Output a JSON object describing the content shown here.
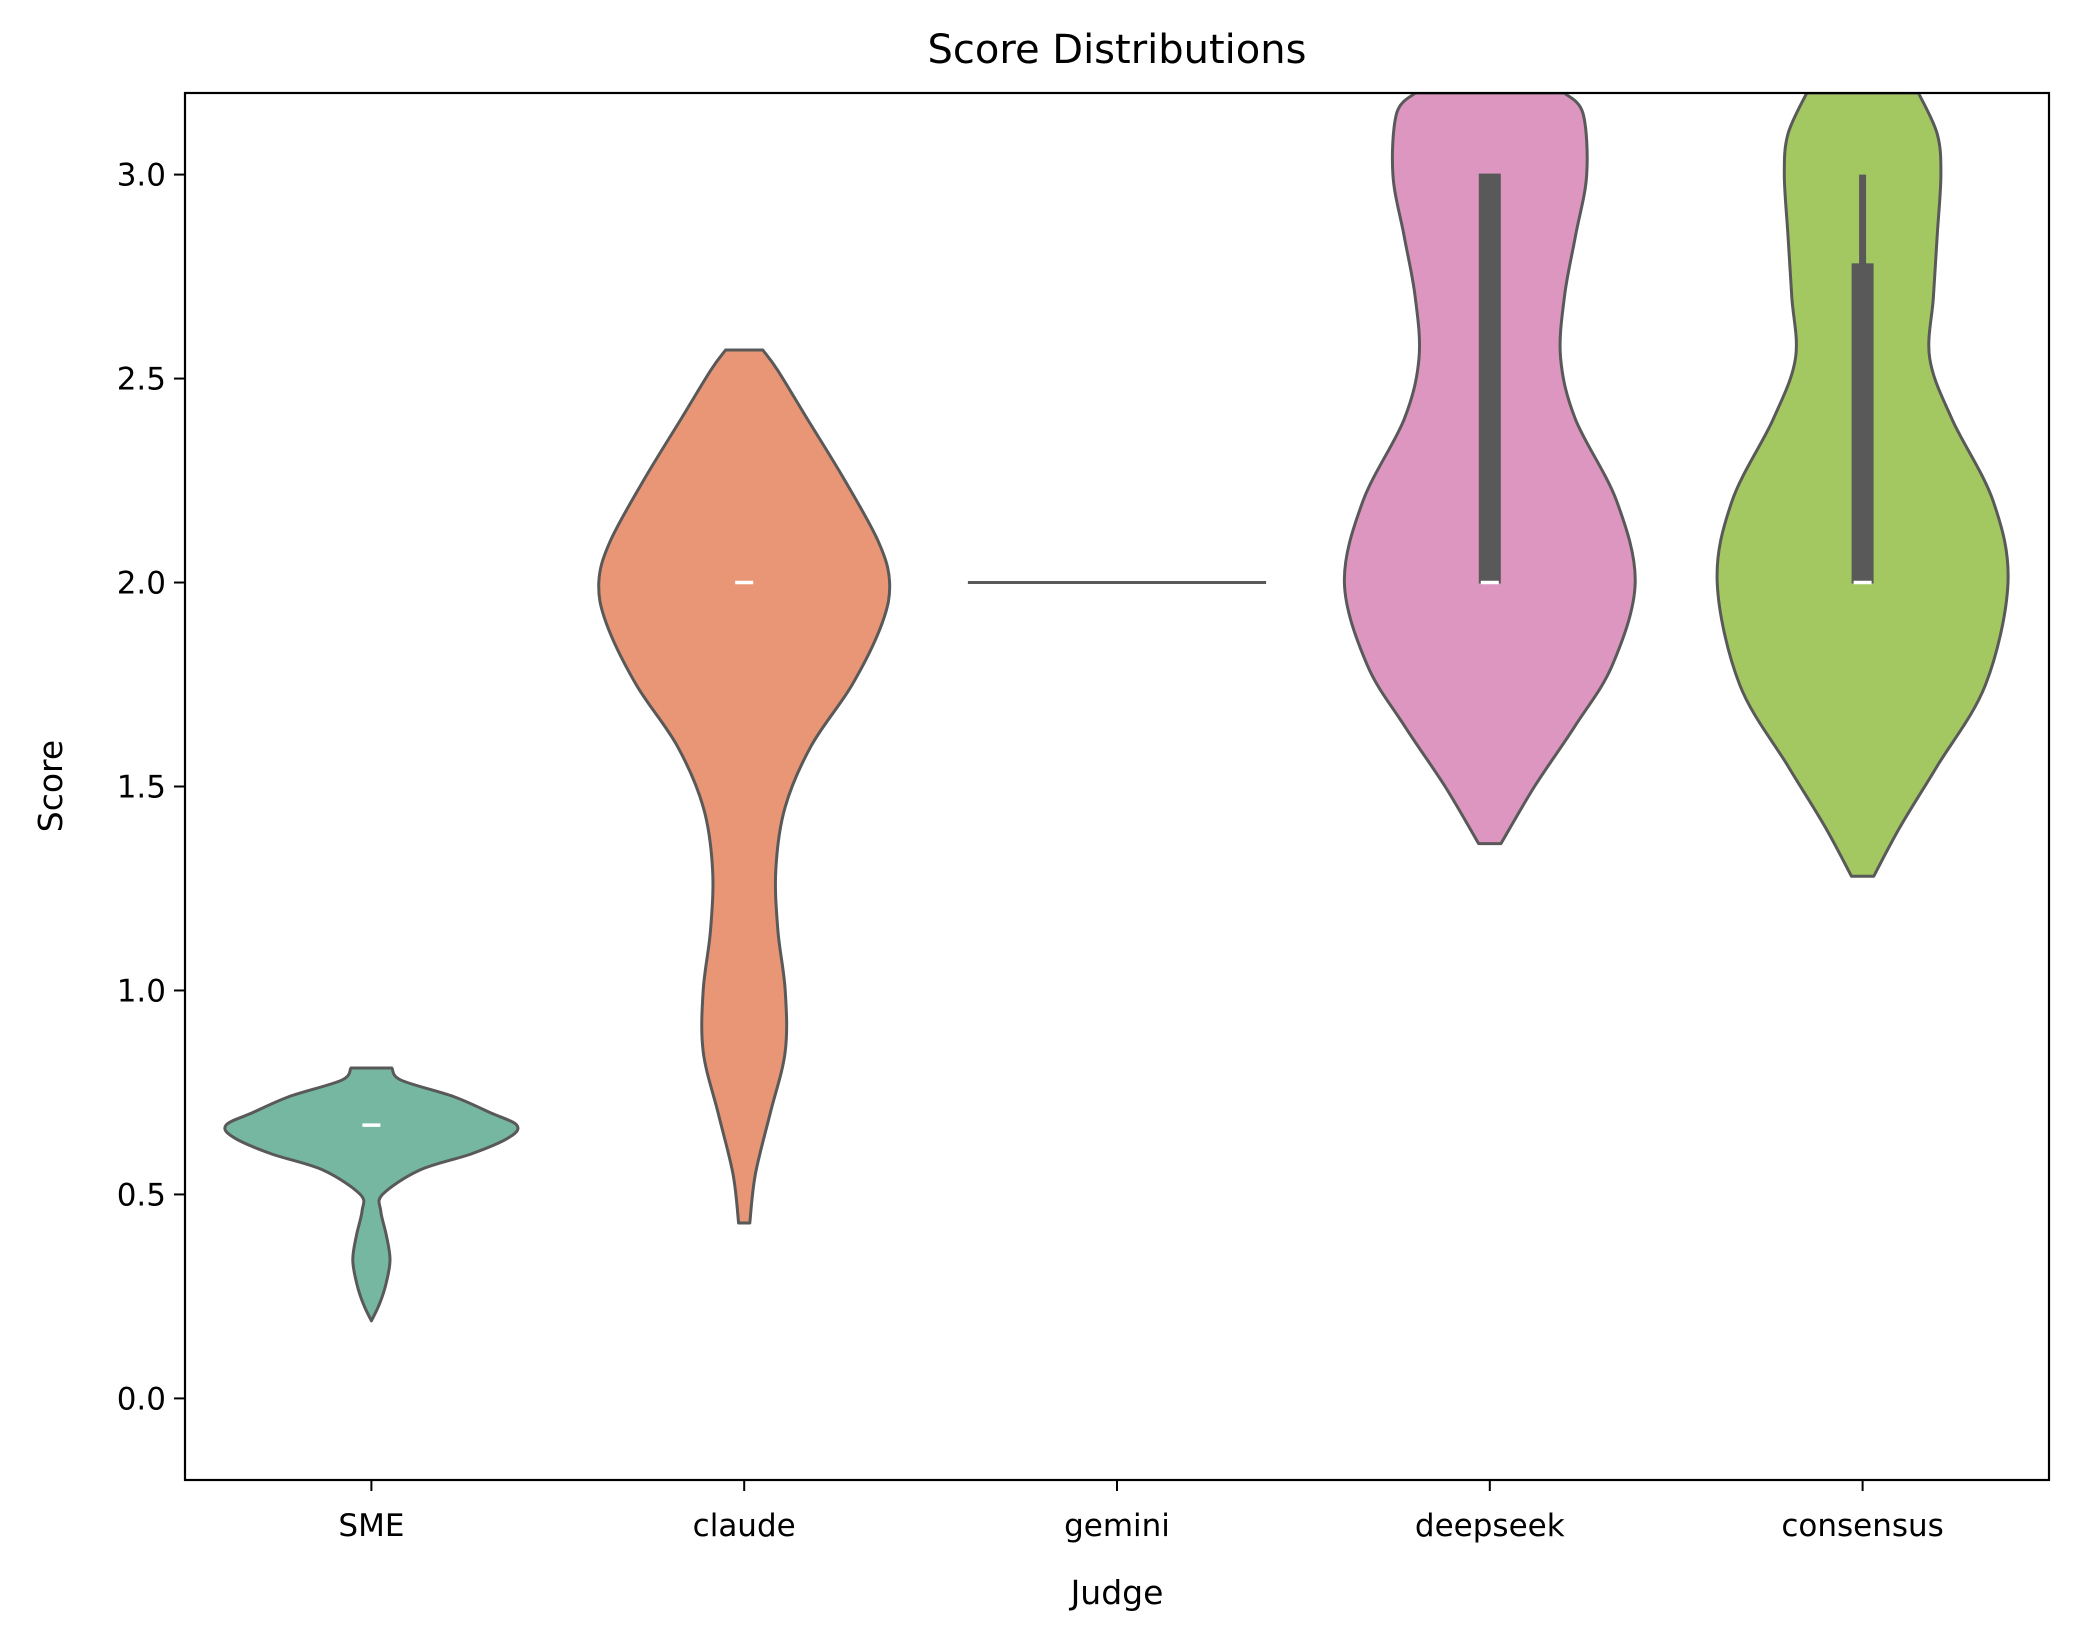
{
  "chart_data": {
    "type": "violin",
    "title": "Score Distributions",
    "xlabel": "Judge",
    "ylabel": "Score",
    "ylim": [
      -0.2,
      3.2
    ],
    "yticks": [
      0.0,
      0.5,
      1.0,
      1.5,
      2.0,
      2.5,
      3.0
    ],
    "ytick_labels": [
      "0.0",
      "0.5",
      "1.0",
      "1.5",
      "2.0",
      "2.5",
      "3.0"
    ],
    "categories": [
      "SME",
      "claude",
      "gemini",
      "deepseek",
      "consensus"
    ],
    "grid": false,
    "legend": "none",
    "violins": [
      {
        "category": "SME",
        "color": "#76b7a2",
        "median": 0.67,
        "box": {
          "q1": 0.67,
          "q3": 0.67,
          "whisker_low": 0.67,
          "whisker_high": 0.67
        },
        "profile": [
          [
            0.19,
            0.0
          ],
          [
            0.23,
            0.021
          ],
          [
            0.28,
            0.039
          ],
          [
            0.34,
            0.05
          ],
          [
            0.4,
            0.04
          ],
          [
            0.46,
            0.025
          ],
          [
            0.5,
            0.03
          ],
          [
            0.56,
            0.13
          ],
          [
            0.6,
            0.27
          ],
          [
            0.64,
            0.37
          ],
          [
            0.67,
            0.39
          ],
          [
            0.7,
            0.32
          ],
          [
            0.74,
            0.22
          ],
          [
            0.78,
            0.08
          ],
          [
            0.81,
            0.055
          ]
        ]
      },
      {
        "category": "claude",
        "color": "#e89676",
        "median": 2.0,
        "box": {
          "q1": 2.0,
          "q3": 2.0,
          "whisker_low": 2.0,
          "whisker_high": 2.0
        },
        "profile": [
          [
            0.43,
            0.015
          ],
          [
            0.55,
            0.03
          ],
          [
            0.7,
            0.07
          ],
          [
            0.85,
            0.11
          ],
          [
            1.0,
            0.11
          ],
          [
            1.15,
            0.09
          ],
          [
            1.3,
            0.085
          ],
          [
            1.45,
            0.11
          ],
          [
            1.6,
            0.18
          ],
          [
            1.75,
            0.29
          ],
          [
            1.9,
            0.37
          ],
          [
            2.0,
            0.39
          ],
          [
            2.1,
            0.36
          ],
          [
            2.25,
            0.27
          ],
          [
            2.4,
            0.17
          ],
          [
            2.52,
            0.09
          ],
          [
            2.57,
            0.05
          ]
        ]
      },
      {
        "category": "gemini",
        "color": "#8da0cb",
        "median": 2.0,
        "box": {
          "q1": 2.0,
          "q3": 2.0,
          "whisker_low": 2.0,
          "whisker_high": 2.0
        },
        "profile": [
          [
            2.0,
            0.4
          ]
        ]
      },
      {
        "category": "deepseek",
        "color": "#dc96c0",
        "median": 2.0,
        "box": {
          "q1": 2.0,
          "q3": 3.0,
          "whisker_low": 2.0,
          "whisker_high": 3.0
        },
        "profile": [
          [
            1.36,
            0.03
          ],
          [
            1.5,
            0.12
          ],
          [
            1.65,
            0.23
          ],
          [
            1.8,
            0.33
          ],
          [
            2.0,
            0.39
          ],
          [
            2.2,
            0.34
          ],
          [
            2.4,
            0.23
          ],
          [
            2.55,
            0.19
          ],
          [
            2.7,
            0.2
          ],
          [
            2.85,
            0.23
          ],
          [
            3.0,
            0.26
          ],
          [
            3.15,
            0.25
          ],
          [
            3.2,
            0.2
          ]
        ]
      },
      {
        "category": "consensus",
        "color": "#a3c862",
        "median": 2.0,
        "box": {
          "q1": 2.0,
          "q3": 2.78,
          "whisker_low": 2.0,
          "whisker_high": 3.0
        },
        "profile": [
          [
            1.28,
            0.03
          ],
          [
            1.4,
            0.1
          ],
          [
            1.55,
            0.2
          ],
          [
            1.75,
            0.33
          ],
          [
            2.0,
            0.39
          ],
          [
            2.2,
            0.35
          ],
          [
            2.4,
            0.24
          ],
          [
            2.55,
            0.18
          ],
          [
            2.7,
            0.19
          ],
          [
            2.85,
            0.2
          ],
          [
            3.0,
            0.21
          ],
          [
            3.1,
            0.2
          ],
          [
            3.2,
            0.15
          ]
        ]
      }
    ],
    "colors": {
      "outline": "#595959",
      "box": "#595959",
      "median_marker": "#ffffff"
    }
  }
}
